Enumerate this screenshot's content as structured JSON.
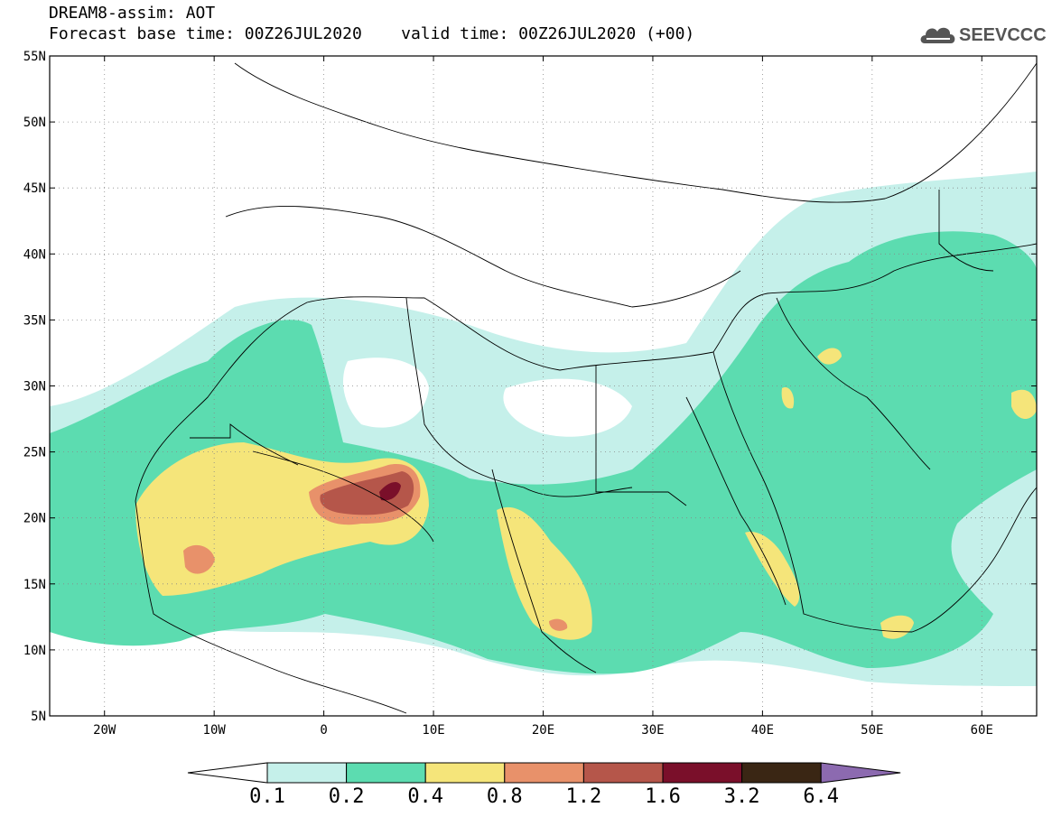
{
  "header": {
    "line1": "DREAM8-assim: AOT",
    "line2": "Forecast base time: 00Z26JUL2020    valid time: 00Z26JUL2020 (+00)"
  },
  "logo": {
    "text": "SEEVCCC",
    "icon": "cloud-icon"
  },
  "map": {
    "lon_range": [
      -25,
      65
    ],
    "lat_range": [
      5,
      55
    ],
    "lat_ticks": [
      "55N",
      "50N",
      "45N",
      "40N",
      "35N",
      "30N",
      "25N",
      "20N",
      "15N",
      "10N",
      "5N"
    ],
    "lon_ticks": [
      "20W",
      "10W",
      "0",
      "10E",
      "20E",
      "30E",
      "40E",
      "50E",
      "60E"
    ]
  },
  "colorbar": {
    "labels": [
      "0.1",
      "0.2",
      "0.4",
      "0.8",
      "1.2",
      "1.6",
      "3.2",
      "6.4"
    ],
    "colors": [
      "#ffffff",
      "#c5f0ea",
      "#5cdcb0",
      "#f5e57a",
      "#e8916a",
      "#b5564a",
      "#7a0f2a",
      "#3a2614",
      "#8c6ab0"
    ]
  }
}
